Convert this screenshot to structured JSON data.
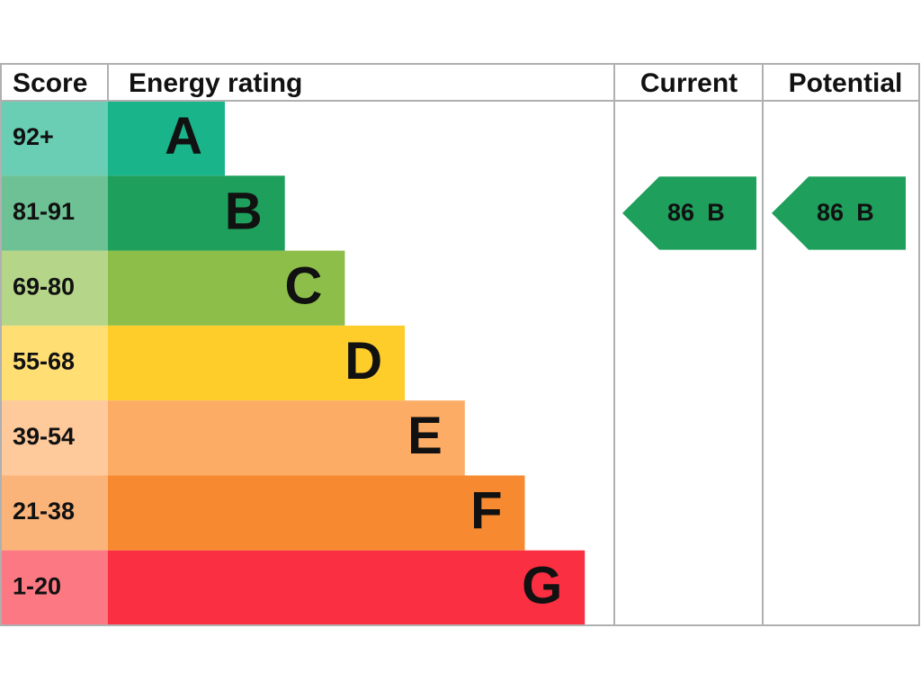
{
  "header": {
    "score": "Score",
    "rating": "Energy rating",
    "current": "Current",
    "potential": "Potential"
  },
  "bands": [
    {
      "score": "92+",
      "letter": "A",
      "color": "#19b48a"
    },
    {
      "score": "81-91",
      "letter": "B",
      "color": "#1e9f5b"
    },
    {
      "score": "69-80",
      "letter": "C",
      "color": "#8dbe4a"
    },
    {
      "score": "55-68",
      "letter": "D",
      "color": "#ffcd2a"
    },
    {
      "score": "39-54",
      "letter": "E",
      "color": "#fdac65"
    },
    {
      "score": "21-38",
      "letter": "F",
      "color": "#f78a31"
    },
    {
      "score": "1-20",
      "letter": "G",
      "color": "#fa2f41"
    }
  ],
  "current": {
    "score": 86,
    "letter": "B"
  },
  "potential": {
    "score": 86,
    "letter": "B"
  }
}
